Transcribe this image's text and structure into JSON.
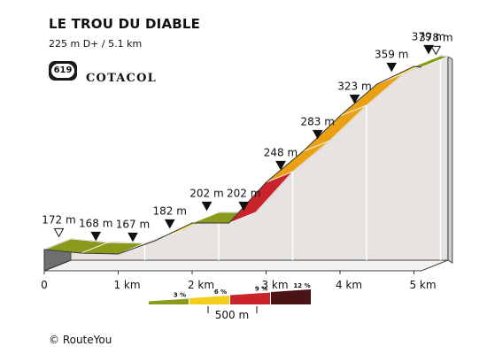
{
  "header": {
    "title": "LE TROU DU DIABLE",
    "subtitle": "225 m D+ / 5.1 km",
    "logo_number": "619",
    "logo_text": "COTACOL"
  },
  "footer": {
    "credit": "© RouteYou"
  },
  "chart_data": {
    "type": "area",
    "title": "LE TROU DU DIABLE",
    "subtitle": "225 m D+ / 5.1 km",
    "x_unit": "km",
    "y_unit": "m",
    "xlim": [
      0,
      5
    ],
    "x_ticks": [
      {
        "value": 0,
        "label": "0"
      },
      {
        "value": 1,
        "label": "1 km"
      },
      {
        "value": 2,
        "label": "2 km"
      },
      {
        "value": 3,
        "label": "3 km"
      },
      {
        "value": 4,
        "label": "4 km"
      },
      {
        "value": 5,
        "label": "5 km"
      }
    ],
    "points": [
      {
        "km": 0.0,
        "elev": 172,
        "label": "172 m"
      },
      {
        "km": 0.5,
        "elev": 168,
        "label": "168 m"
      },
      {
        "km": 1.0,
        "elev": 167,
        "label": "167 m"
      },
      {
        "km": 1.5,
        "elev": 182,
        "label": "182 m"
      },
      {
        "km": 2.0,
        "elev": 202,
        "label": "202 m"
      },
      {
        "km": 2.5,
        "elev": 202,
        "label": "202 m"
      },
      {
        "km": 3.0,
        "elev": 248,
        "label": "248 m"
      },
      {
        "km": 3.5,
        "elev": 283,
        "label": "283 m"
      },
      {
        "km": 4.0,
        "elev": 323,
        "label": "323 m"
      },
      {
        "km": 4.5,
        "elev": 359,
        "label": "359 m"
      },
      {
        "km": 5.0,
        "elev": 379,
        "label": "379 m"
      },
      {
        "km": 5.1,
        "elev": 378,
        "label": "378 m"
      }
    ],
    "legend": {
      "segment_length": "500 m",
      "classes": [
        {
          "label": "3 %",
          "color": "#8a9a1b"
        },
        {
          "label": "6 %",
          "color": "#f2cf1d"
        },
        {
          "label": "9 %",
          "color": "#c9242b"
        },
        {
          "label": "12 %",
          "color": "#4a1414"
        }
      ]
    },
    "segment_colors": [
      "#8a9a1b",
      "#f2cf1d",
      "#e9a012",
      "#c9242b",
      "#4a1414"
    ]
  }
}
